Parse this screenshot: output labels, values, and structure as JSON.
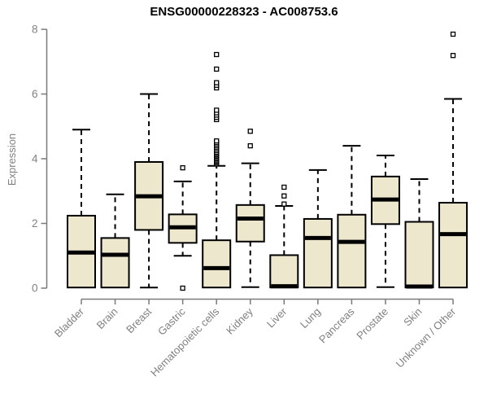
{
  "chart_data": {
    "type": "boxplot",
    "title": "ENSG00000228323 - AC008753.6",
    "ylabel": "Expression",
    "xlabel": "",
    "ylim": [
      0,
      8
    ],
    "yticks": [
      0,
      2,
      4,
      6,
      8
    ],
    "grid": false,
    "legend": false,
    "categories": [
      "Bladder",
      "Brain",
      "Breast",
      "Gastric",
      "Hematopoietic cells",
      "Kidney",
      "Liver",
      "Lung",
      "Pancreas",
      "Prostate",
      "Skin",
      "Unknown / Other"
    ],
    "boxes": [
      {
        "label": "Bladder",
        "whislo": 0.0,
        "q1": 0.02,
        "med": 1.1,
        "q3": 2.24,
        "whishi": 4.9,
        "outliers": []
      },
      {
        "label": "Brain",
        "whislo": 0.0,
        "q1": 0.02,
        "med": 1.03,
        "q3": 1.55,
        "whishi": 2.9,
        "outliers": []
      },
      {
        "label": "Breast",
        "whislo": 0.02,
        "q1": 1.8,
        "med": 2.84,
        "q3": 3.9,
        "whishi": 6.0,
        "outliers": []
      },
      {
        "label": "Gastric",
        "whislo": 1.0,
        "q1": 1.4,
        "med": 1.88,
        "q3": 2.28,
        "whishi": 3.3,
        "outliers": [
          3.72,
          0.0
        ]
      },
      {
        "label": "Hematopoietic cells",
        "whislo": 0.0,
        "q1": 0.02,
        "med": 0.62,
        "q3": 1.48,
        "whishi": 3.78,
        "outliers": [
          3.84,
          3.88,
          3.92,
          3.96,
          4.0,
          4.04,
          4.08,
          4.12,
          4.16,
          4.2,
          4.25,
          4.3,
          4.35,
          4.4,
          4.45,
          4.5,
          4.55,
          5.21,
          5.28,
          5.35,
          5.42,
          5.5,
          6.19,
          6.27,
          6.35,
          6.77,
          7.22
        ]
      },
      {
        "label": "Kidney",
        "whislo": 0.03,
        "q1": 1.44,
        "med": 2.15,
        "q3": 2.57,
        "whishi": 3.86,
        "outliers": [
          4.4,
          4.85
        ]
      },
      {
        "label": "Liver",
        "whislo": 0.0,
        "q1": 0.02,
        "med": 0.06,
        "q3": 1.02,
        "whishi": 2.54,
        "outliers": [
          2.6,
          2.85,
          3.12
        ]
      },
      {
        "label": "Lung",
        "whislo": 0.0,
        "q1": 0.02,
        "med": 1.55,
        "q3": 2.14,
        "whishi": 3.65,
        "outliers": []
      },
      {
        "label": "Pancreas",
        "whislo": 0.0,
        "q1": 0.02,
        "med": 1.43,
        "q3": 2.27,
        "whishi": 4.4,
        "outliers": []
      },
      {
        "label": "Prostate",
        "whislo": 0.03,
        "q1": 1.98,
        "med": 2.74,
        "q3": 3.45,
        "whishi": 4.1,
        "outliers": []
      },
      {
        "label": "Skin",
        "whislo": 0.0,
        "q1": 0.02,
        "med": 0.05,
        "q3": 2.05,
        "whishi": 3.37,
        "outliers": []
      },
      {
        "label": "Unknown / Other",
        "whislo": 0.0,
        "q1": 0.02,
        "med": 1.67,
        "q3": 2.64,
        "whishi": 5.85,
        "outliers": [
          7.19,
          7.85
        ]
      }
    ],
    "colors": {
      "box_fill": "#EDE8CD",
      "box_border": "#000000",
      "median": "#000000",
      "whisker": "#000000",
      "outlier_fill": "#ffffff",
      "outlier_border": "#000000",
      "axis": "#7a7a7a",
      "tick_label": "#808080",
      "title": "#000000"
    }
  }
}
